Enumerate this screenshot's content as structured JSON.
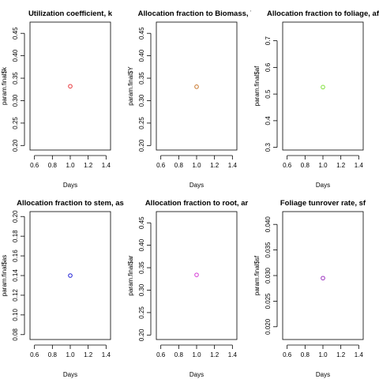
{
  "chart_data": [
    {
      "type": "scatter",
      "title": "Utilization coefficient, k",
      "xlabel": "Days",
      "ylabel": "param.final$k",
      "xlim": [
        0.55,
        1.45
      ],
      "ylim": [
        0.19,
        0.475
      ],
      "xticks": [
        0.6,
        0.8,
        1.0,
        1.2,
        1.4
      ],
      "xtick_labels": [
        "0.6",
        "0.8",
        "1.0",
        "1.2",
        "1.4"
      ],
      "yticks": [
        0.2,
        0.25,
        0.3,
        0.35,
        0.4,
        0.45
      ],
      "ytick_labels": [
        "0.20",
        "0.25",
        "0.30",
        "0.35",
        "0.40",
        "0.45"
      ],
      "grid": false,
      "points": [
        {
          "x": 1.0,
          "y": 0.332
        }
      ],
      "point_color": "#e8383d"
    },
    {
      "type": "scatter",
      "title": "Allocation fraction to Biomass, Y",
      "xlabel": "Days",
      "ylabel": "param.final$Y",
      "xlim": [
        0.55,
        1.45
      ],
      "ylim": [
        0.19,
        0.475
      ],
      "xticks": [
        0.6,
        0.8,
        1.0,
        1.2,
        1.4
      ],
      "xtick_labels": [
        "0.6",
        "0.8",
        "1.0",
        "1.2",
        "1.4"
      ],
      "yticks": [
        0.2,
        0.25,
        0.3,
        0.35,
        0.4,
        0.45
      ],
      "ytick_labels": [
        "0.20",
        "0.25",
        "0.30",
        "0.35",
        "0.40",
        "0.45"
      ],
      "grid": false,
      "points": [
        {
          "x": 1.0,
          "y": 0.331
        }
      ],
      "point_color": "#c8762a"
    },
    {
      "type": "scatter",
      "title": "Allocation fraction to foliage, af",
      "xlabel": "Days",
      "ylabel": "param.final$af",
      "xlim": [
        0.55,
        1.45
      ],
      "ylim": [
        0.29,
        0.77
      ],
      "xticks": [
        0.6,
        0.8,
        1.0,
        1.2,
        1.4
      ],
      "xtick_labels": [
        "0.6",
        "0.8",
        "1.0",
        "1.2",
        "1.4"
      ],
      "yticks": [
        0.3,
        0.4,
        0.5,
        0.6,
        0.7
      ],
      "ytick_labels": [
        "0.3",
        "0.4",
        "0.5",
        "0.6",
        "0.7"
      ],
      "grid": false,
      "points": [
        {
          "x": 1.0,
          "y": 0.526
        }
      ],
      "point_color": "#7fe03a"
    },
    {
      "type": "scatter",
      "title": "Allocation fraction to stem, as",
      "xlabel": "Days",
      "ylabel": "param.final$as",
      "xlim": [
        0.55,
        1.45
      ],
      "ylim": [
        0.075,
        0.205
      ],
      "xticks": [
        0.6,
        0.8,
        1.0,
        1.2,
        1.4
      ],
      "xtick_labels": [
        "0.6",
        "0.8",
        "1.0",
        "1.2",
        "1.4"
      ],
      "yticks": [
        0.08,
        0.1,
        0.12,
        0.14,
        0.16,
        0.18,
        0.2
      ],
      "ytick_labels": [
        "0.08",
        "0.10",
        "0.12",
        "0.14",
        "0.16",
        "0.18",
        "0.20"
      ],
      "grid": false,
      "points": [
        {
          "x": 1.0,
          "y": 0.14
        }
      ],
      "point_color": "#1f1fd6"
    },
    {
      "type": "scatter",
      "title": "Allocation fraction to root, ar",
      "xlabel": "Days",
      "ylabel": "param.final$ar",
      "xlim": [
        0.55,
        1.45
      ],
      "ylim": [
        0.19,
        0.475
      ],
      "xticks": [
        0.6,
        0.8,
        1.0,
        1.2,
        1.4
      ],
      "xtick_labels": [
        "0.6",
        "0.8",
        "1.0",
        "1.2",
        "1.4"
      ],
      "yticks": [
        0.2,
        0.25,
        0.3,
        0.35,
        0.4,
        0.45
      ],
      "ytick_labels": [
        "0.20",
        "0.25",
        "0.30",
        "0.35",
        "0.40",
        "0.45"
      ],
      "grid": false,
      "points": [
        {
          "x": 1.0,
          "y": 0.334
        }
      ],
      "point_color": "#d63ad6"
    },
    {
      "type": "scatter",
      "title": "Foliage tunrover rate, sf",
      "xlabel": "Days",
      "ylabel": "param.final$sf",
      "xlim": [
        0.55,
        1.45
      ],
      "ylim": [
        0.0175,
        0.0425
      ],
      "xticks": [
        0.6,
        0.8,
        1.0,
        1.2,
        1.4
      ],
      "xtick_labels": [
        "0.6",
        "0.8",
        "1.0",
        "1.2",
        "1.4"
      ],
      "yticks": [
        0.02,
        0.025,
        0.03,
        0.035,
        0.04
      ],
      "ytick_labels": [
        "0.020",
        "0.025",
        "0.030",
        "0.035",
        "0.040"
      ],
      "grid": false,
      "points": [
        {
          "x": 1.0,
          "y": 0.0295
        }
      ],
      "point_color": "#9b2fbf"
    }
  ]
}
